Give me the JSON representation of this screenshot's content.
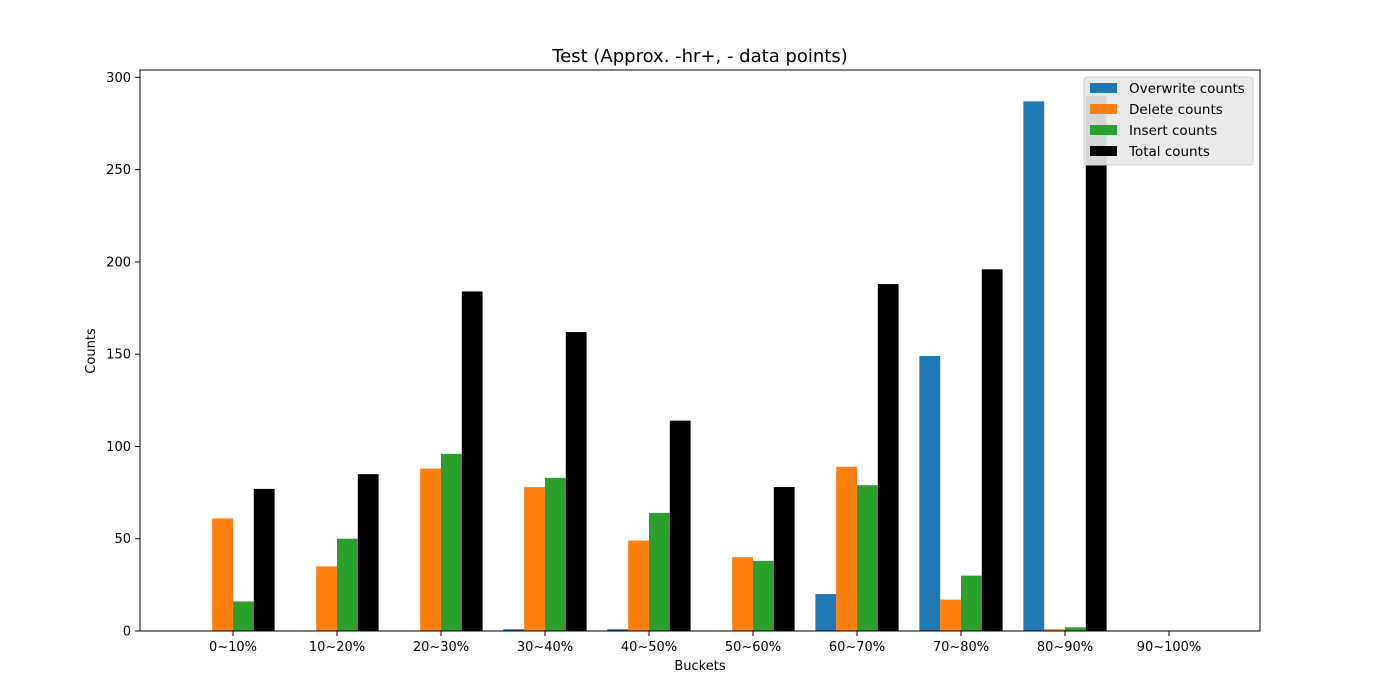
{
  "chart_data": {
    "type": "bar",
    "title": "Test (Approx. -hr+, - data points)",
    "xlabel": "Buckets",
    "ylabel": "Counts",
    "ylim": [
      0,
      304
    ],
    "yticks": [
      0,
      50,
      100,
      150,
      200,
      250,
      300
    ],
    "categories": [
      "0~10%",
      "10~20%",
      "20~30%",
      "30~40%",
      "40~50%",
      "50~60%",
      "60~70%",
      "70~80%",
      "80~90%",
      "90~100%"
    ],
    "series": [
      {
        "name": "Overwrite counts",
        "color": "#1f77b4",
        "values": [
          0,
          0,
          0,
          1,
          1,
          0,
          20,
          149,
          287,
          0
        ]
      },
      {
        "name": "Delete counts",
        "color": "#ff7f0e",
        "values": [
          61,
          35,
          88,
          78,
          49,
          40,
          89,
          17,
          1,
          0
        ]
      },
      {
        "name": "Insert counts",
        "color": "#2ca02c",
        "values": [
          16,
          50,
          96,
          83,
          64,
          38,
          79,
          30,
          2,
          0
        ]
      },
      {
        "name": "Total counts",
        "color": "#000000",
        "values": [
          77,
          85,
          184,
          162,
          114,
          78,
          188,
          196,
          290,
          0
        ]
      }
    ],
    "grid": false,
    "legend_position": "top-right"
  }
}
